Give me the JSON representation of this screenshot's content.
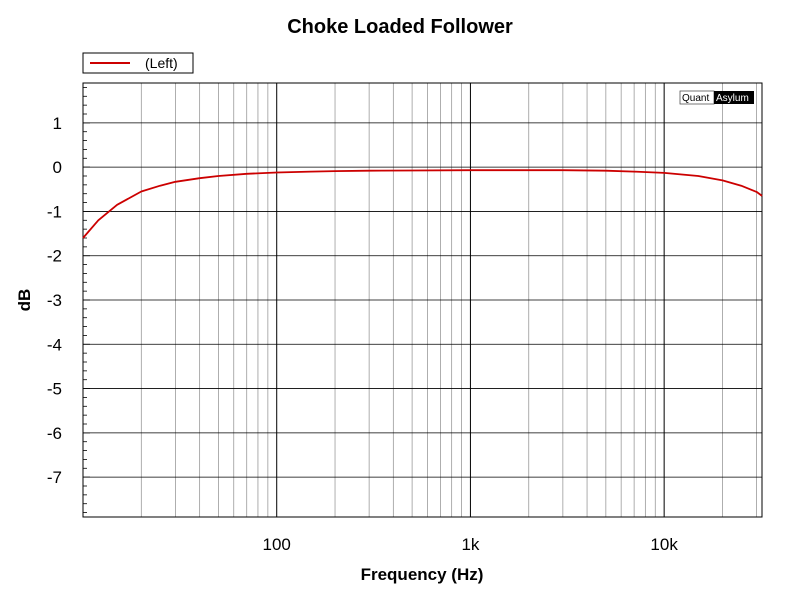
{
  "chart_data": {
    "type": "line",
    "title": "Choke Loaded Follower",
    "xlabel": "Frequency (Hz)",
    "ylabel": "dB",
    "x_scale": "log",
    "xlim": [
      10,
      32000
    ],
    "ylim": [
      -7.9,
      1.9
    ],
    "x_tick_labels": [
      {
        "value": 100,
        "label": "100"
      },
      {
        "value": 1000,
        "label": "1k"
      },
      {
        "value": 10000,
        "label": "10k"
      }
    ],
    "y_tick_labels": [
      {
        "value": 1,
        "label": "1"
      },
      {
        "value": 0,
        "label": "0"
      },
      {
        "value": -1,
        "label": "-1"
      },
      {
        "value": -2,
        "label": "-2"
      },
      {
        "value": -3,
        "label": "-3"
      },
      {
        "value": -4,
        "label": "-4"
      },
      {
        "value": -5,
        "label": "-5"
      },
      {
        "value": -6,
        "label": "-6"
      },
      {
        "value": -7,
        "label": "-7"
      }
    ],
    "grid": true,
    "legend_position": "top-left",
    "series": [
      {
        "name": "(Left)",
        "color": "#cc0000",
        "x": [
          10,
          12,
          15,
          20,
          25,
          30,
          40,
          50,
          70,
          100,
          150,
          200,
          300,
          500,
          1000,
          2000,
          3000,
          5000,
          7000,
          10000,
          15000,
          20000,
          25000,
          30000,
          32000
        ],
        "y": [
          -1.6,
          -1.2,
          -0.85,
          -0.55,
          -0.42,
          -0.33,
          -0.25,
          -0.2,
          -0.15,
          -0.12,
          -0.1,
          -0.09,
          -0.08,
          -0.075,
          -0.07,
          -0.07,
          -0.07,
          -0.08,
          -0.1,
          -0.13,
          -0.2,
          -0.3,
          -0.42,
          -0.56,
          -0.65
        ]
      }
    ]
  },
  "branding": {
    "logo_part1": "Quant",
    "logo_part2": "Asylum"
  }
}
